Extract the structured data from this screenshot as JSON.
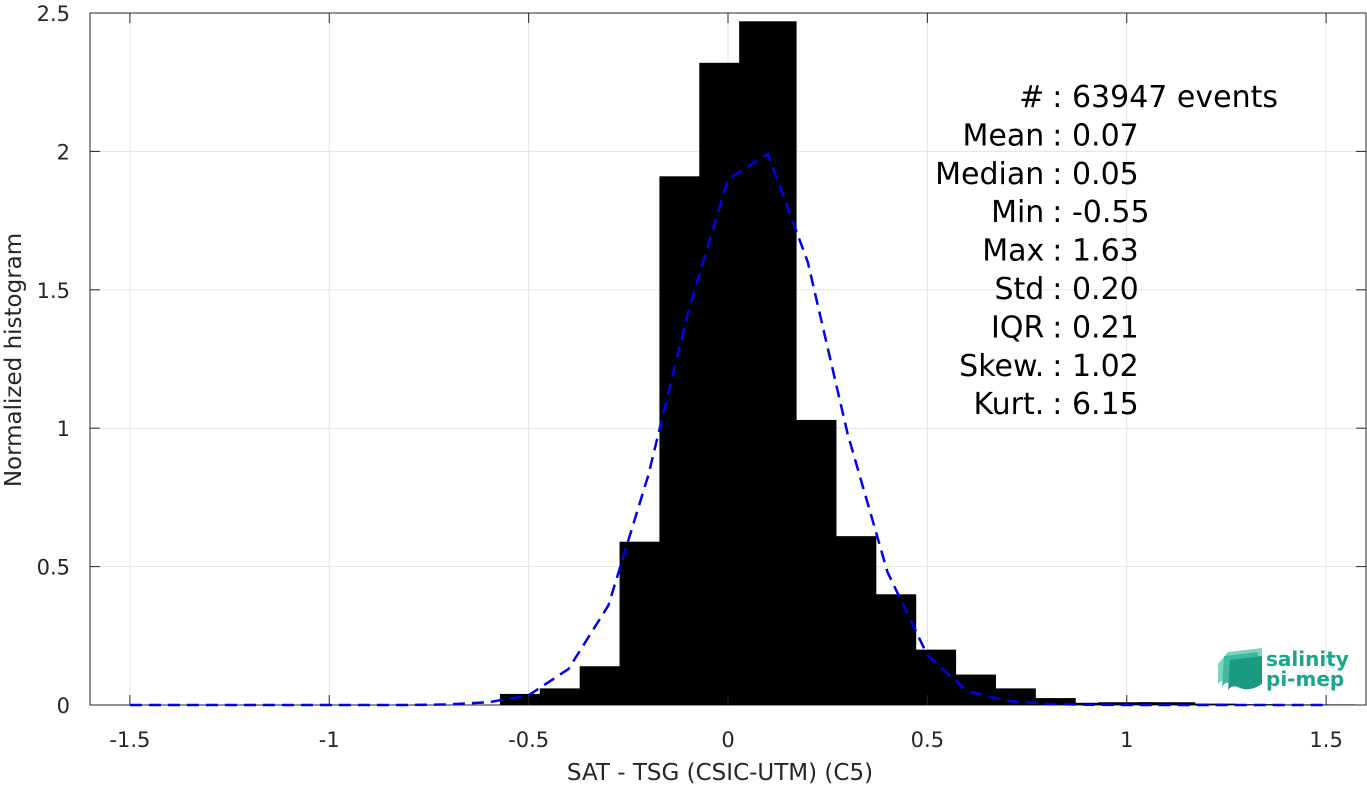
{
  "chart_data": {
    "type": "bar",
    "xlabel": "SAT - TSG (CSIC-UTM) (C5)",
    "ylabel": "Normalized histogram",
    "xlim": [
      -1.6,
      1.6
    ],
    "ylim": [
      0,
      2.5
    ],
    "xticks": [
      -1.5,
      -1,
      -0.5,
      0,
      0.5,
      1,
      1.5
    ],
    "xtick_labels": [
      "-1.5",
      "-1",
      "-0.5",
      "0",
      "0.5",
      "1",
      "1.5"
    ],
    "yticks": [
      0,
      0.5,
      1,
      1.5,
      2,
      2.5
    ],
    "ytick_labels": [
      "0",
      "0.5",
      "1",
      "1.5",
      "2",
      "2.5"
    ],
    "grid": true,
    "bar_color": "#000000",
    "bars": {
      "x": [
        -0.5,
        -0.4,
        -0.3,
        -0.2,
        -0.1,
        0.0,
        0.1,
        0.2,
        0.3,
        0.4,
        0.5,
        0.6,
        0.7,
        0.8,
        0.9,
        1.0,
        1.1,
        1.2,
        1.3,
        1.4,
        1.5
      ],
      "values": [
        0.04,
        0.06,
        0.14,
        0.59,
        1.91,
        2.32,
        2.47,
        1.03,
        0.61,
        0.4,
        0.2,
        0.11,
        0.06,
        0.025,
        0.008,
        0.01,
        0.01,
        0.005,
        0.003,
        0.002,
        0.002
      ]
    },
    "curve_color": "#0000ee",
    "curve": {
      "style": "dashed",
      "x": [
        -1.5,
        -1.4,
        -1.3,
        -1.2,
        -1.1,
        -1.0,
        -0.9,
        -0.8,
        -0.7,
        -0.6,
        -0.5,
        -0.4,
        -0.3,
        -0.2,
        -0.1,
        0.0,
        0.1,
        0.2,
        0.3,
        0.4,
        0.5,
        0.6,
        0.7,
        0.8,
        0.9,
        1.0,
        1.1,
        1.2,
        1.3,
        1.4,
        1.5
      ],
      "y": [
        0,
        0,
        0,
        0,
        0,
        0,
        0,
        0,
        0.002,
        0.01,
        0.035,
        0.13,
        0.36,
        0.83,
        1.42,
        1.9,
        1.99,
        1.6,
        0.98,
        0.48,
        0.18,
        0.05,
        0.015,
        0.004,
        0.001,
        0,
        0,
        0,
        0,
        0,
        0
      ]
    },
    "stats": [
      {
        "label": "#",
        "sep": ": 63947 events"
      },
      {
        "label": "Mean",
        "sep": ": 0.07"
      },
      {
        "label": "Median",
        "sep": ": 0.05"
      },
      {
        "label": "Min",
        "sep": ": -0.55"
      },
      {
        "label": "Max",
        "sep": ": 1.63"
      },
      {
        "label": "Std",
        "sep": ": 0.20"
      },
      {
        "label": "IQR",
        "sep": ": 0.21"
      },
      {
        "label": "Skew.",
        "sep": ": 1.02"
      },
      {
        "label": "Kurt.",
        "sep": ": 6.15"
      }
    ]
  },
  "logo": {
    "line1": "salinity",
    "line2": "pi-mep"
  }
}
